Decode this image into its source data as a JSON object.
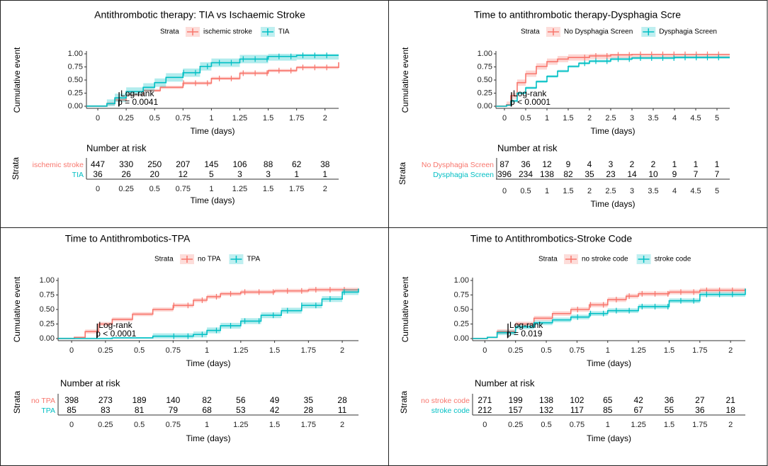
{
  "colors": {
    "red": "#F8766D",
    "red_band": "#F8766D",
    "teal": "#00BFC4",
    "teal_band": "#00BFC4",
    "axis": "#333333"
  },
  "chart_data": [
    {
      "type": "line",
      "subtype": "cumulative-event-curve",
      "title": "Antithrombotic therapy: TIA vs Ischaemic Stroke",
      "xlabel": "Time (days)",
      "ylabel": "Cumulative event",
      "legend_title": "Strata",
      "xlim": [
        -0.1,
        2.12
      ],
      "ylim": [
        0,
        1
      ],
      "xticks": [
        0,
        0.25,
        0.5,
        0.75,
        1,
        1.25,
        1.5,
        1.75,
        2
      ],
      "xtick_labels": [
        "0",
        "0.25",
        "0.5",
        "0.75",
        "1",
        "1.25",
        "1.5",
        "1.75",
        "2"
      ],
      "yticks": [
        0,
        0.25,
        0.5,
        0.75,
        1
      ],
      "ytick_labels": [
        "0.00",
        "0.25",
        "0.50",
        "0.75",
        "1.00"
      ],
      "annotation": {
        "line1": "Log-rank",
        "line2": "p = 0.0041",
        "x": 0.2,
        "y": 0.16
      },
      "series": [
        {
          "name": "ischemic stroke",
          "color": "red",
          "x": [
            -0.1,
            0.02,
            0.08,
            0.15,
            0.25,
            0.4,
            0.55,
            0.75,
            1.0,
            1.25,
            1.5,
            1.75,
            2.12
          ],
          "y": [
            0,
            0,
            0.05,
            0.12,
            0.22,
            0.3,
            0.36,
            0.44,
            0.53,
            0.63,
            0.68,
            0.74,
            0.84
          ],
          "band": 0.03
        },
        {
          "name": "TIA",
          "color": "teal",
          "x": [
            -0.1,
            0.02,
            0.08,
            0.15,
            0.25,
            0.4,
            0.5,
            0.6,
            0.75,
            0.9,
            1.0,
            1.25,
            1.5,
            1.75,
            2.12
          ],
          "y": [
            0,
            0,
            0.05,
            0.16,
            0.28,
            0.36,
            0.45,
            0.55,
            0.64,
            0.76,
            0.83,
            0.9,
            0.95,
            0.97,
            0.97
          ],
          "band": 0.08
        }
      ],
      "risk_table": {
        "title": "Number at risk",
        "strata_label": "Strata",
        "xlabel": "Time (days)",
        "rows": [
          {
            "label": "ischemic stroke",
            "color": "red",
            "values": [
              "447",
              "330",
              "250",
              "207",
              "145",
              "106",
              "88",
              "62",
              "38"
            ]
          },
          {
            "label": "TIA",
            "color": "teal",
            "values": [
              "36",
              "26",
              "20",
              "12",
              "5",
              "3",
              "3",
              "1",
              "1"
            ]
          }
        ]
      }
    },
    {
      "type": "line",
      "subtype": "cumulative-event-curve",
      "title": "Time to antithrombotic therapy-Dysphagia Scre",
      "xlabel": "Time (days)",
      "ylabel": "Cumulative event",
      "legend_title": "Strata",
      "xlim": [
        -0.2,
        5.3
      ],
      "ylim": [
        0,
        1
      ],
      "xticks": [
        0,
        0.5,
        1,
        1.5,
        2,
        2.5,
        3,
        3.5,
        4,
        4.5,
        5
      ],
      "xtick_labels": [
        "0",
        "0.5",
        "1",
        "1.5",
        "2",
        "2.5",
        "3",
        "3.5",
        "4",
        "4.5",
        "5"
      ],
      "yticks": [
        0,
        0.25,
        0.5,
        0.75,
        1
      ],
      "ytick_labels": [
        "0.00",
        "0.25",
        "0.50",
        "0.75",
        "1.00"
      ],
      "annotation": {
        "line1": "Log-rank",
        "line2": "p < 0.0001",
        "x": 0.2,
        "y": 0.16
      },
      "series": [
        {
          "name": "No Dysphagia Screen",
          "color": "red",
          "x": [
            -0.2,
            0.05,
            0.15,
            0.3,
            0.5,
            0.75,
            1.0,
            1.25,
            1.5,
            2.0,
            2.5,
            3.0,
            4.0,
            5.3
          ],
          "y": [
            0,
            0.03,
            0.2,
            0.45,
            0.62,
            0.76,
            0.85,
            0.9,
            0.93,
            0.96,
            0.98,
            0.99,
            0.99,
            0.99
          ],
          "band": 0.06
        },
        {
          "name": "Dysphagia Screen",
          "color": "teal",
          "x": [
            -0.2,
            0.05,
            0.15,
            0.3,
            0.5,
            0.75,
            1.0,
            1.25,
            1.5,
            1.75,
            2.0,
            2.5,
            3.0,
            4.0,
            5.3
          ],
          "y": [
            0,
            0.02,
            0.1,
            0.25,
            0.35,
            0.47,
            0.57,
            0.67,
            0.76,
            0.82,
            0.86,
            0.9,
            0.92,
            0.93,
            0.93
          ],
          "band": 0.025
        }
      ],
      "risk_table": {
        "title": "Number at risk",
        "strata_label": "Strata",
        "xlabel": "Time (days)",
        "rows": [
          {
            "label": "No Dysphagia Screen",
            "color": "red",
            "values": [
              "87",
              "36",
              "12",
              "9",
              "4",
              "3",
              "2",
              "2",
              "1",
              "1",
              "1"
            ]
          },
          {
            "label": "Dysphagia Screen",
            "color": "teal",
            "values": [
              "396",
              "234",
              "138",
              "82",
              "35",
              "23",
              "14",
              "10",
              "9",
              "7",
              "7"
            ]
          }
        ]
      }
    },
    {
      "type": "line",
      "subtype": "cumulative-event-curve",
      "title": "Time to Antithrombotics-TPA",
      "xlabel": "Time (days)",
      "ylabel": "Cumulative event",
      "legend_title": "Strata",
      "xlim": [
        -0.1,
        2.12
      ],
      "ylim": [
        0,
        1
      ],
      "xticks": [
        0,
        0.25,
        0.5,
        0.75,
        1,
        1.25,
        1.5,
        1.75,
        2
      ],
      "xtick_labels": [
        "0",
        "0.25",
        "0.5",
        "0.75",
        "1",
        "1.25",
        "1.5",
        "1.75",
        "2"
      ],
      "yticks": [
        0,
        0.25,
        0.5,
        0.75,
        1
      ],
      "ytick_labels": [
        "0.00",
        "0.25",
        "0.50",
        "0.75",
        "1.00"
      ],
      "annotation": {
        "line1": "Log-rank",
        "line2": "p < 0.0001",
        "x": 0.2,
        "y": 0.16
      },
      "series": [
        {
          "name": "no TPA",
          "color": "red",
          "x": [
            -0.1,
            0.02,
            0.1,
            0.2,
            0.3,
            0.45,
            0.6,
            0.75,
            0.9,
            1.0,
            1.1,
            1.25,
            1.5,
            1.75,
            2.12
          ],
          "y": [
            0,
            0.02,
            0.12,
            0.25,
            0.33,
            0.42,
            0.5,
            0.57,
            0.66,
            0.72,
            0.77,
            0.8,
            0.82,
            0.84,
            0.86
          ],
          "band": 0.035
        },
        {
          "name": "TPA",
          "color": "teal",
          "x": [
            -0.1,
            0.02,
            0.3,
            0.6,
            0.9,
            1.0,
            1.1,
            1.25,
            1.4,
            1.55,
            1.7,
            1.85,
            2.0,
            2.12
          ],
          "y": [
            0,
            0,
            0.01,
            0.04,
            0.07,
            0.14,
            0.22,
            0.3,
            0.4,
            0.48,
            0.57,
            0.68,
            0.8,
            0.86
          ],
          "band": 0.05
        }
      ],
      "risk_table": {
        "title": "Number at risk",
        "strata_label": "Strata",
        "xlabel": "Time (days)",
        "rows": [
          {
            "label": "no TPA",
            "color": "red",
            "values": [
              "398",
              "273",
              "189",
              "140",
              "82",
              "56",
              "49",
              "35",
              "28"
            ]
          },
          {
            "label": "TPA",
            "color": "teal",
            "values": [
              "85",
              "83",
              "81",
              "79",
              "68",
              "53",
              "42",
              "28",
              "11"
            ]
          }
        ]
      }
    },
    {
      "type": "line",
      "subtype": "cumulative-event-curve",
      "title": "Time to Antithrombotics-Stroke Code",
      "xlabel": "Time (days)",
      "ylabel": "Cumulative event",
      "legend_title": "Strata",
      "xlim": [
        -0.1,
        2.12
      ],
      "ylim": [
        0,
        1
      ],
      "xticks": [
        0,
        0.25,
        0.5,
        0.75,
        1,
        1.25,
        1.5,
        1.75,
        2
      ],
      "xtick_labels": [
        "0",
        "0.25",
        "0.5",
        "0.75",
        "1",
        "1.25",
        "1.5",
        "1.75",
        "2"
      ],
      "yticks": [
        0,
        0.25,
        0.5,
        0.75,
        1
      ],
      "ytick_labels": [
        "0.00",
        "0.25",
        "0.50",
        "0.75",
        "1.00"
      ],
      "annotation": {
        "line1": "Log-rank",
        "line2": "p = 0.019",
        "x": 0.2,
        "y": 0.16
      },
      "series": [
        {
          "name": "no stroke code",
          "color": "red",
          "x": [
            -0.1,
            0.02,
            0.1,
            0.25,
            0.4,
            0.55,
            0.7,
            0.85,
            1.0,
            1.15,
            1.25,
            1.5,
            1.75,
            2.12
          ],
          "y": [
            0,
            0.02,
            0.12,
            0.25,
            0.35,
            0.43,
            0.5,
            0.58,
            0.67,
            0.73,
            0.77,
            0.8,
            0.83,
            0.86
          ],
          "band": 0.04
        },
        {
          "name": "stroke code",
          "color": "teal",
          "x": [
            -0.1,
            0.02,
            0.1,
            0.25,
            0.4,
            0.55,
            0.7,
            0.85,
            1.0,
            1.25,
            1.5,
            1.75,
            2.12
          ],
          "y": [
            0,
            0.02,
            0.1,
            0.2,
            0.27,
            0.32,
            0.37,
            0.43,
            0.48,
            0.55,
            0.65,
            0.76,
            0.86
          ],
          "band": 0.04
        }
      ],
      "risk_table": {
        "title": "Number at risk",
        "strata_label": "Strata",
        "xlabel": "Time (days)",
        "rows": [
          {
            "label": "no stroke code",
            "color": "red",
            "values": [
              "271",
              "199",
              "138",
              "102",
              "65",
              "42",
              "36",
              "27",
              "21"
            ]
          },
          {
            "label": "stroke code",
            "color": "teal",
            "values": [
              "212",
              "157",
              "132",
              "117",
              "85",
              "67",
              "55",
              "36",
              "18"
            ]
          }
        ]
      }
    }
  ]
}
